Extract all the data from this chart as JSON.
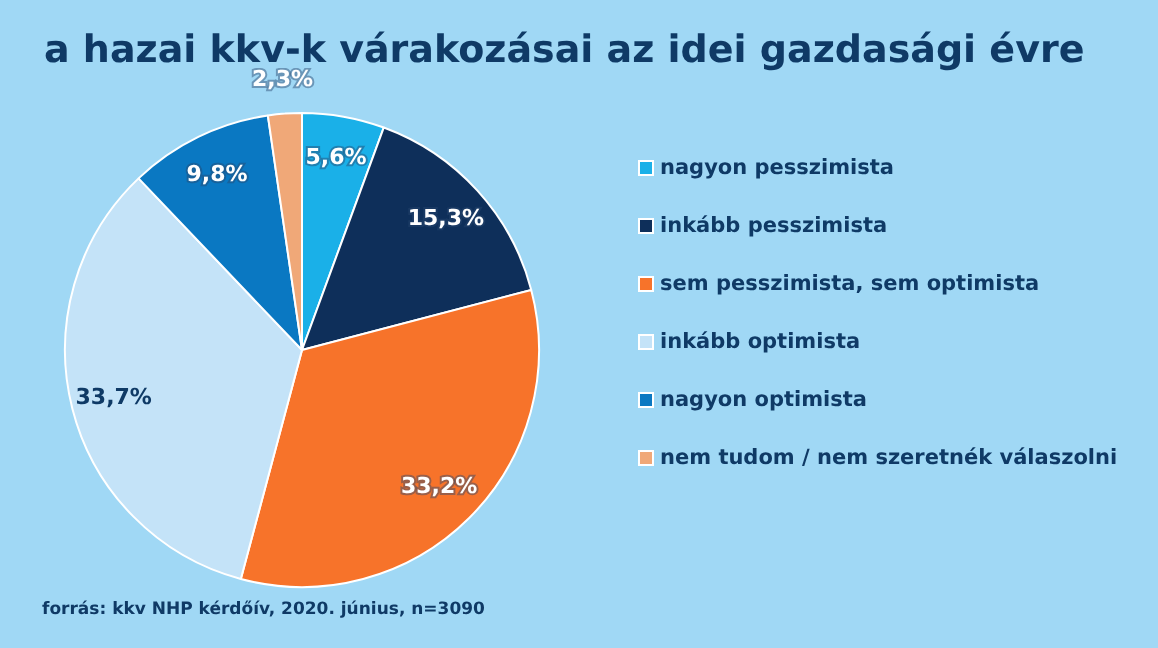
{
  "chart_data": {
    "type": "pie",
    "title": "a hazai kkv-k várakozásai az idei gazdasági évre",
    "categories": [
      "nagyon pesszimista",
      "inkább pesszimista",
      "sem pesszimista, sem optimista",
      "inkább optimista",
      "nagyon optimista",
      "nem tudom / nem szeretnék válaszolni"
    ],
    "values": [
      5.6,
      15.3,
      33.2,
      33.7,
      9.8,
      2.3
    ],
    "value_labels": [
      "5,6%",
      "15,3%",
      "33,2%",
      "33,7%",
      "9,8%",
      "2,3%"
    ],
    "colors": [
      "#1ab0e8",
      "#0e2f5a",
      "#f7732a",
      "#c4e3f8",
      "#0a78c2",
      "#f0a878"
    ],
    "legend": "right",
    "annotations": [
      "forrás: kkv NHP kérdőív, 2020. június, n=3090"
    ]
  }
}
